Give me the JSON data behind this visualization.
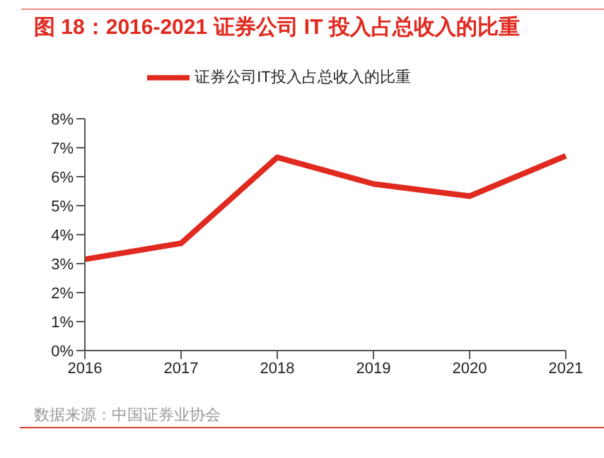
{
  "chart_data": {
    "type": "line",
    "title": "图 18：2016-2021 证券公司 IT 投入占总收入的比重",
    "categories": [
      "2016",
      "2017",
      "2018",
      "2019",
      "2020",
      "2021"
    ],
    "series": [
      {
        "name": "证券公司IT投入占总收入的比重",
        "color": "#e02a20",
        "values": [
          3.15,
          3.7,
          6.67,
          5.75,
          5.33,
          6.72
        ]
      }
    ],
    "ylim": [
      0,
      8
    ],
    "yticks": [
      {
        "value": 0,
        "label": "0%"
      },
      {
        "value": 1,
        "label": "1%"
      },
      {
        "value": 2,
        "label": "2%"
      },
      {
        "value": 3,
        "label": "3%"
      },
      {
        "value": 4,
        "label": "4%"
      },
      {
        "value": 5,
        "label": "5%"
      },
      {
        "value": 6,
        "label": "6%"
      },
      {
        "value": 7,
        "label": "7%"
      },
      {
        "value": 8,
        "label": "8%"
      }
    ],
    "grid": false,
    "legend": "top",
    "marker": "none",
    "line_style": "solid",
    "annotations": [
      "数据来源：中国证券业协会"
    ]
  }
}
